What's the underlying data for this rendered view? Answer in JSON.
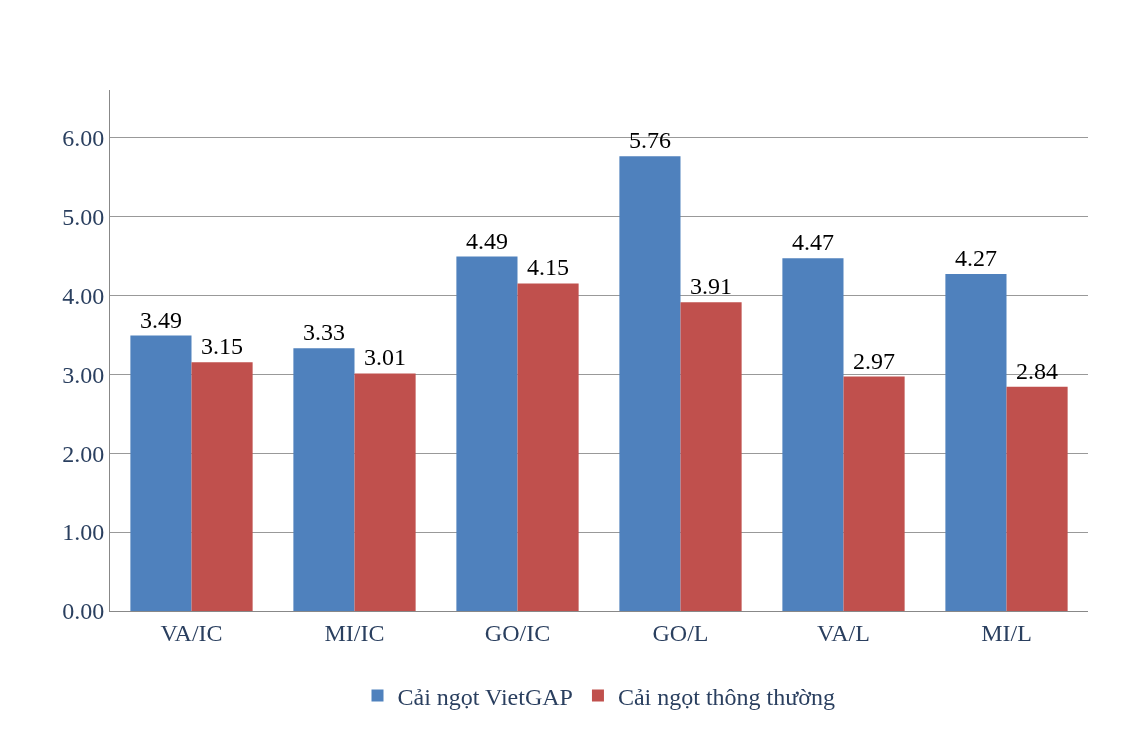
{
  "chart_data": {
    "type": "bar",
    "categories": [
      "VA/IC",
      "MI/IC",
      "GO/IC",
      "GO/L",
      "VA/L",
      "MI/L"
    ],
    "series": [
      {
        "name": "Cải ngọt VietGAP",
        "color": "#4f81bd",
        "values": [
          3.49,
          3.33,
          4.49,
          5.76,
          4.47,
          4.27
        ]
      },
      {
        "name": "Cải ngọt thông thường",
        "color": "#c0504d",
        "values": [
          3.15,
          3.01,
          4.15,
          3.91,
          2.97,
          2.84
        ]
      }
    ],
    "ylim": [
      0,
      6.6
    ],
    "yticks": [
      {
        "value": 0,
        "label": "0.00"
      },
      {
        "value": 1,
        "label": "1.00"
      },
      {
        "value": 2,
        "label": "2.00"
      },
      {
        "value": 3,
        "label": "3.00"
      },
      {
        "value": 4,
        "label": "4.00"
      },
      {
        "value": 5,
        "label": "5.00"
      },
      {
        "value": 6,
        "label": "6.00"
      }
    ],
    "grid": "y",
    "legend": "bottom",
    "data_labels": true
  }
}
